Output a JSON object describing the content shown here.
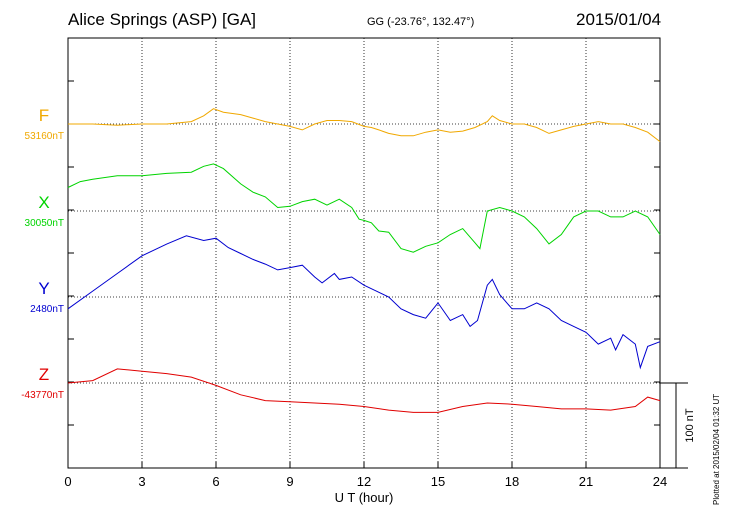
{
  "header": {
    "station": "Alice Springs (ASP)  [GA]",
    "coords": "GG (-23.76°, 132.47°)",
    "date": "2015/01/04"
  },
  "footer_note": "Plotted at 2015/02/04 01:32 UT",
  "chart_data": {
    "type": "line",
    "xlabel": "U T (hour)",
    "xlim": [
      0,
      24
    ],
    "xticks": [
      0,
      3,
      6,
      9,
      12,
      15,
      18,
      21,
      24
    ],
    "grid": true,
    "scale_bar_label": "100 nT",
    "series": [
      {
        "name": "F",
        "baseline_label": "53160nT",
        "color": "#f0a800",
        "baseline_nT": 53160,
        "x": [
          0,
          1,
          2,
          3,
          4,
          5,
          5.5,
          5.9,
          6.3,
          7,
          7.5,
          8,
          9,
          9.5,
          10,
          10.5,
          11,
          11.5,
          12,
          12.3,
          12.6,
          13,
          13.5,
          14,
          14.5,
          15,
          15.5,
          16,
          16.5,
          17,
          17.2,
          17.5,
          18,
          18.5,
          19,
          19.5,
          20,
          20.5,
          21,
          21.5,
          22,
          22.5,
          23,
          23.5,
          24
        ],
        "y": [
          53160,
          53160,
          53159,
          53160,
          53160,
          53162,
          53167,
          53173,
          53170,
          53168,
          53165,
          53162,
          53158,
          53155,
          53160,
          53163,
          53163,
          53162,
          53158,
          53157,
          53155,
          53152,
          53150,
          53150,
          53153,
          53155,
          53153,
          53154,
          53157,
          53162,
          53167,
          53163,
          53160,
          53160,
          53157,
          53152,
          53155,
          53158,
          53160,
          53162,
          53160,
          53160,
          53157,
          53153,
          53145
        ]
      },
      {
        "name": "X",
        "baseline_label": "30050nT",
        "color": "#00d400",
        "baseline_nT": 30050,
        "x": [
          0,
          0.5,
          1,
          2,
          3,
          4,
          5,
          5.5,
          5.9,
          6.3,
          7,
          7.5,
          8,
          8.5,
          9,
          9.5,
          10,
          10.5,
          11,
          11.5,
          11.8,
          12,
          12.3,
          12.6,
          13,
          13.5,
          14,
          14.5,
          15,
          15.5,
          16,
          16.5,
          16.7,
          17,
          17.5,
          18,
          18.5,
          19,
          19.5,
          20,
          20.5,
          21,
          21.5,
          22,
          22.5,
          23,
          23.5,
          24
        ],
        "y": [
          30070,
          30075,
          30077,
          30080,
          30080,
          30082,
          30083,
          30088,
          30090,
          30086,
          30073,
          30066,
          30062,
          30053,
          30054,
          30058,
          30060,
          30055,
          30060,
          30053,
          30043,
          30042,
          30040,
          30033,
          30032,
          30018,
          30015,
          30020,
          30023,
          30030,
          30035,
          30023,
          30018,
          30050,
          30053,
          30050,
          30045,
          30035,
          30022,
          30030,
          30045,
          30050,
          30050,
          30045,
          30045,
          30050,
          30045,
          30030
        ]
      },
      {
        "name": "Y",
        "baseline_label": "2480nT",
        "color": "#0000d0",
        "baseline_nT": 2480,
        "x": [
          0,
          1,
          2,
          3,
          4,
          4.8,
          5.5,
          6,
          6.5,
          7,
          7.5,
          8,
          8.5,
          9,
          9.5,
          10,
          10.3,
          10.8,
          11,
          11.5,
          12,
          12.5,
          13,
          13.5,
          14,
          14.5,
          15,
          15.5,
          16,
          16.3,
          16.6,
          17,
          17.2,
          17.5,
          18,
          18.5,
          19,
          19.5,
          20,
          20.5,
          21,
          21.5,
          22,
          22.2,
          22.5,
          23,
          23.2,
          23.5,
          24
        ],
        "y": [
          2470,
          2485,
          2500,
          2515,
          2525,
          2532,
          2528,
          2530,
          2522,
          2517,
          2512,
          2508,
          2503,
          2505,
          2507,
          2497,
          2492,
          2500,
          2495,
          2497,
          2490,
          2485,
          2480,
          2470,
          2465,
          2462,
          2475,
          2460,
          2465,
          2455,
          2460,
          2490,
          2495,
          2482,
          2470,
          2470,
          2475,
          2470,
          2460,
          2455,
          2450,
          2440,
          2445,
          2435,
          2448,
          2440,
          2420,
          2438,
          2442
        ]
      },
      {
        "name": "Z",
        "baseline_label": "-43770nT",
        "color": "#e00000",
        "baseline_nT": -43770,
        "x": [
          0,
          1,
          2,
          3,
          4,
          5,
          6,
          7,
          8,
          9,
          10,
          11,
          12,
          13,
          14,
          15,
          16,
          17,
          18,
          19,
          20,
          21,
          22,
          23,
          23.5,
          24
        ],
        "y": [
          -43770,
          -43768,
          -43758,
          -43760,
          -43762,
          -43765,
          -43772,
          -43780,
          -43785,
          -43786,
          -43787,
          -43788,
          -43790,
          -43793,
          -43795,
          -43795,
          -43790,
          -43787,
          -43788,
          -43790,
          -43792,
          -43792,
          -43793,
          -43790,
          -43782,
          -43785
        ]
      }
    ]
  }
}
